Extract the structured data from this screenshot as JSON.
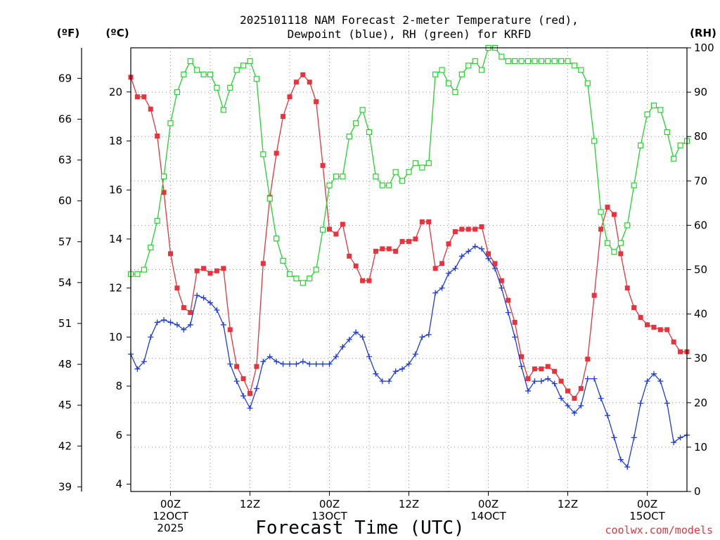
{
  "chart_data": {
    "type": "line",
    "title_line1": "2025101118 NAM Forecast 2-meter Temperature (red),",
    "title_line2": "Dewpoint (blue), RH (green) for KRFD",
    "xlabel": "Forecast Time (UTC)",
    "credit": "coolwx.com/models",
    "units": {
      "fahrenheit": "(ºF)",
      "celsius": "(ºC)",
      "rh": "(RH)"
    },
    "x_range_hours": [
      0,
      84
    ],
    "y_celsius_range": [
      3.7,
      21.8
    ],
    "y_rh_range": [
      0,
      100
    ],
    "y_fahrenheit_ticks": [
      "39",
      "42",
      "45",
      "48",
      "51",
      "54",
      "57",
      "60",
      "63",
      "66",
      "69"
    ],
    "y_celsius_ticks": [
      "4",
      "6",
      "8",
      "10",
      "12",
      "14",
      "16",
      "18",
      "20"
    ],
    "y_rh_ticks": [
      "0",
      "10",
      "20",
      "30",
      "40",
      "50",
      "60",
      "70",
      "80",
      "90",
      "100"
    ],
    "x_tick_labels": [
      {
        "hour": 6,
        "lines": [
          "00Z",
          "12OCT",
          "2025"
        ]
      },
      {
        "hour": 18,
        "lines": [
          "12Z"
        ]
      },
      {
        "hour": 30,
        "lines": [
          "00Z",
          "13OCT"
        ]
      },
      {
        "hour": 42,
        "lines": [
          "12Z"
        ]
      },
      {
        "hour": 54,
        "lines": [
          "00Z",
          "14OCT"
        ]
      },
      {
        "hour": 66,
        "lines": [
          "12Z"
        ]
      },
      {
        "hour": 78,
        "lines": [
          "00Z",
          "15OCT"
        ]
      }
    ],
    "grid": true,
    "series": [
      {
        "name": "Temperature",
        "color": "#e8323c",
        "axis": "celsius",
        "marker": "filled-square",
        "values": [
          [
            0,
            20.6
          ],
          [
            1,
            19.8
          ],
          [
            2,
            19.8
          ],
          [
            3,
            19.3
          ],
          [
            4,
            18.2
          ],
          [
            5,
            15.9
          ],
          [
            6,
            13.4
          ],
          [
            7,
            12.0
          ],
          [
            8,
            11.2
          ],
          [
            9,
            11.0
          ],
          [
            10,
            12.7
          ],
          [
            11,
            12.8
          ],
          [
            12,
            12.6
          ],
          [
            13,
            12.7
          ],
          [
            14,
            12.8
          ],
          [
            15,
            10.3
          ],
          [
            16,
            8.8
          ],
          [
            17,
            8.3
          ],
          [
            18,
            7.7
          ],
          [
            19,
            8.8
          ],
          [
            20,
            13.0
          ],
          [
            21,
            15.7
          ],
          [
            22,
            17.5
          ],
          [
            23,
            19.0
          ],
          [
            24,
            19.8
          ],
          [
            25,
            20.4
          ],
          [
            26,
            20.7
          ],
          [
            27,
            20.4
          ],
          [
            28,
            19.6
          ],
          [
            29,
            17.0
          ],
          [
            30,
            14.4
          ],
          [
            31,
            14.2
          ],
          [
            32,
            14.6
          ],
          [
            33,
            13.3
          ],
          [
            34,
            12.9
          ],
          [
            35,
            12.3
          ],
          [
            36,
            12.3
          ],
          [
            37,
            13.5
          ],
          [
            38,
            13.6
          ],
          [
            39,
            13.6
          ],
          [
            40,
            13.5
          ],
          [
            41,
            13.9
          ],
          [
            42,
            13.9
          ],
          [
            43,
            14.0
          ],
          [
            44,
            14.7
          ],
          [
            45,
            14.7
          ],
          [
            46,
            12.8
          ],
          [
            47,
            13.0
          ],
          [
            48,
            13.8
          ],
          [
            49,
            14.3
          ],
          [
            50,
            14.4
          ],
          [
            51,
            14.4
          ],
          [
            52,
            14.4
          ],
          [
            53,
            14.5
          ],
          [
            54,
            13.4
          ],
          [
            55,
            13.0
          ],
          [
            56,
            12.3
          ],
          [
            57,
            11.5
          ],
          [
            58,
            10.6
          ],
          [
            59,
            9.2
          ],
          [
            60,
            8.3
          ],
          [
            61,
            8.7
          ],
          [
            62,
            8.7
          ],
          [
            63,
            8.8
          ],
          [
            64,
            8.6
          ],
          [
            65,
            8.2
          ],
          [
            66,
            7.8
          ],
          [
            67,
            7.5
          ],
          [
            68,
            7.9
          ],
          [
            69,
            9.1
          ],
          [
            70,
            11.7
          ],
          [
            71,
            14.4
          ],
          [
            72,
            15.3
          ],
          [
            73,
            15.0
          ],
          [
            74,
            13.4
          ],
          [
            75,
            12.0
          ],
          [
            76,
            11.2
          ],
          [
            77,
            10.8
          ],
          [
            78,
            10.5
          ],
          [
            79,
            10.4
          ],
          [
            80,
            10.3
          ],
          [
            81,
            10.3
          ],
          [
            82,
            9.8
          ],
          [
            83,
            9.4
          ],
          [
            84,
            9.4
          ]
        ]
      },
      {
        "name": "Dewpoint",
        "color": "#1e3cdc",
        "axis": "celsius",
        "marker": "plus",
        "values": [
          [
            0,
            9.3
          ],
          [
            1,
            8.7
          ],
          [
            2,
            9.0
          ],
          [
            3,
            10.0
          ],
          [
            4,
            10.6
          ],
          [
            5,
            10.7
          ],
          [
            6,
            10.6
          ],
          [
            7,
            10.5
          ],
          [
            8,
            10.3
          ],
          [
            9,
            10.5
          ],
          [
            10,
            11.7
          ],
          [
            11,
            11.6
          ],
          [
            12,
            11.4
          ],
          [
            13,
            11.1
          ],
          [
            14,
            10.5
          ],
          [
            15,
            8.9
          ],
          [
            16,
            8.2
          ],
          [
            17,
            7.6
          ],
          [
            18,
            7.1
          ],
          [
            19,
            7.9
          ],
          [
            20,
            9.0
          ],
          [
            21,
            9.2
          ],
          [
            22,
            9.0
          ],
          [
            23,
            8.9
          ],
          [
            24,
            8.9
          ],
          [
            25,
            8.9
          ],
          [
            26,
            9.0
          ],
          [
            27,
            8.9
          ],
          [
            28,
            8.9
          ],
          [
            29,
            8.9
          ],
          [
            30,
            8.9
          ],
          [
            31,
            9.2
          ],
          [
            32,
            9.6
          ],
          [
            33,
            9.9
          ],
          [
            34,
            10.2
          ],
          [
            35,
            10.0
          ],
          [
            36,
            9.2
          ],
          [
            37,
            8.5
          ],
          [
            38,
            8.2
          ],
          [
            39,
            8.2
          ],
          [
            40,
            8.6
          ],
          [
            41,
            8.7
          ],
          [
            42,
            8.9
          ],
          [
            43,
            9.3
          ],
          [
            44,
            10.0
          ],
          [
            45,
            10.1
          ],
          [
            46,
            11.8
          ],
          [
            47,
            12.0
          ],
          [
            48,
            12.6
          ],
          [
            49,
            12.8
          ],
          [
            50,
            13.3
          ],
          [
            51,
            13.5
          ],
          [
            52,
            13.7
          ],
          [
            53,
            13.6
          ],
          [
            54,
            13.2
          ],
          [
            55,
            12.8
          ],
          [
            56,
            12.0
          ],
          [
            57,
            11.0
          ],
          [
            58,
            10.0
          ],
          [
            59,
            8.8
          ],
          [
            60,
            7.8
          ],
          [
            61,
            8.2
          ],
          [
            62,
            8.2
          ],
          [
            63,
            8.3
          ],
          [
            64,
            8.1
          ],
          [
            65,
            7.5
          ],
          [
            66,
            7.2
          ],
          [
            67,
            6.9
          ],
          [
            68,
            7.2
          ],
          [
            69,
            8.3
          ],
          [
            70,
            8.3
          ],
          [
            71,
            7.5
          ],
          [
            72,
            6.8
          ],
          [
            73,
            5.9
          ],
          [
            74,
            5.0
          ],
          [
            75,
            4.7
          ],
          [
            76,
            5.9
          ],
          [
            77,
            7.3
          ],
          [
            78,
            8.2
          ],
          [
            79,
            8.5
          ],
          [
            80,
            8.2
          ],
          [
            81,
            7.3
          ],
          [
            82,
            5.7
          ],
          [
            83,
            5.9
          ],
          [
            84,
            6.0
          ]
        ]
      },
      {
        "name": "RH",
        "color": "#22d42c",
        "axis": "rh",
        "marker": "open-square",
        "values": [
          [
            0,
            49
          ],
          [
            1,
            49
          ],
          [
            2,
            50
          ],
          [
            3,
            55
          ],
          [
            4,
            61
          ],
          [
            5,
            71
          ],
          [
            6,
            83
          ],
          [
            7,
            90
          ],
          [
            8,
            94
          ],
          [
            9,
            97
          ],
          [
            10,
            95
          ],
          [
            11,
            94
          ],
          [
            12,
            94
          ],
          [
            13,
            91
          ],
          [
            14,
            86
          ],
          [
            15,
            91
          ],
          [
            16,
            95
          ],
          [
            17,
            96
          ],
          [
            18,
            97
          ],
          [
            19,
            93
          ],
          [
            20,
            76
          ],
          [
            21,
            66
          ],
          [
            22,
            57
          ],
          [
            23,
            52
          ],
          [
            24,
            49
          ],
          [
            25,
            48
          ],
          [
            26,
            47
          ],
          [
            27,
            48
          ],
          [
            28,
            50
          ],
          [
            29,
            59
          ],
          [
            30,
            69
          ],
          [
            31,
            71
          ],
          [
            32,
            71
          ],
          [
            33,
            80
          ],
          [
            34,
            83
          ],
          [
            35,
            86
          ],
          [
            36,
            81
          ],
          [
            37,
            71
          ],
          [
            38,
            69
          ],
          [
            39,
            69
          ],
          [
            40,
            72
          ],
          [
            41,
            70
          ],
          [
            42,
            72
          ],
          [
            43,
            74
          ],
          [
            44,
            73
          ],
          [
            45,
            74
          ],
          [
            46,
            94
          ],
          [
            47,
            95
          ],
          [
            48,
            92
          ],
          [
            49,
            90
          ],
          [
            50,
            94
          ],
          [
            51,
            96
          ],
          [
            52,
            97
          ],
          [
            53,
            95
          ],
          [
            54,
            100
          ],
          [
            55,
            100
          ],
          [
            56,
            98
          ],
          [
            57,
            97
          ],
          [
            58,
            97
          ],
          [
            59,
            97
          ],
          [
            60,
            97
          ],
          [
            61,
            97
          ],
          [
            62,
            97
          ],
          [
            63,
            97
          ],
          [
            64,
            97
          ],
          [
            65,
            97
          ],
          [
            66,
            97
          ],
          [
            67,
            96
          ],
          [
            68,
            95
          ],
          [
            69,
            92
          ],
          [
            70,
            79
          ],
          [
            71,
            63
          ],
          [
            72,
            56
          ],
          [
            73,
            54
          ],
          [
            74,
            56
          ],
          [
            75,
            60
          ],
          [
            76,
            69
          ],
          [
            77,
            78
          ],
          [
            78,
            85
          ],
          [
            79,
            87
          ],
          [
            80,
            86
          ],
          [
            81,
            81
          ],
          [
            82,
            75
          ],
          [
            83,
            78
          ],
          [
            84,
            79
          ]
        ]
      }
    ]
  }
}
